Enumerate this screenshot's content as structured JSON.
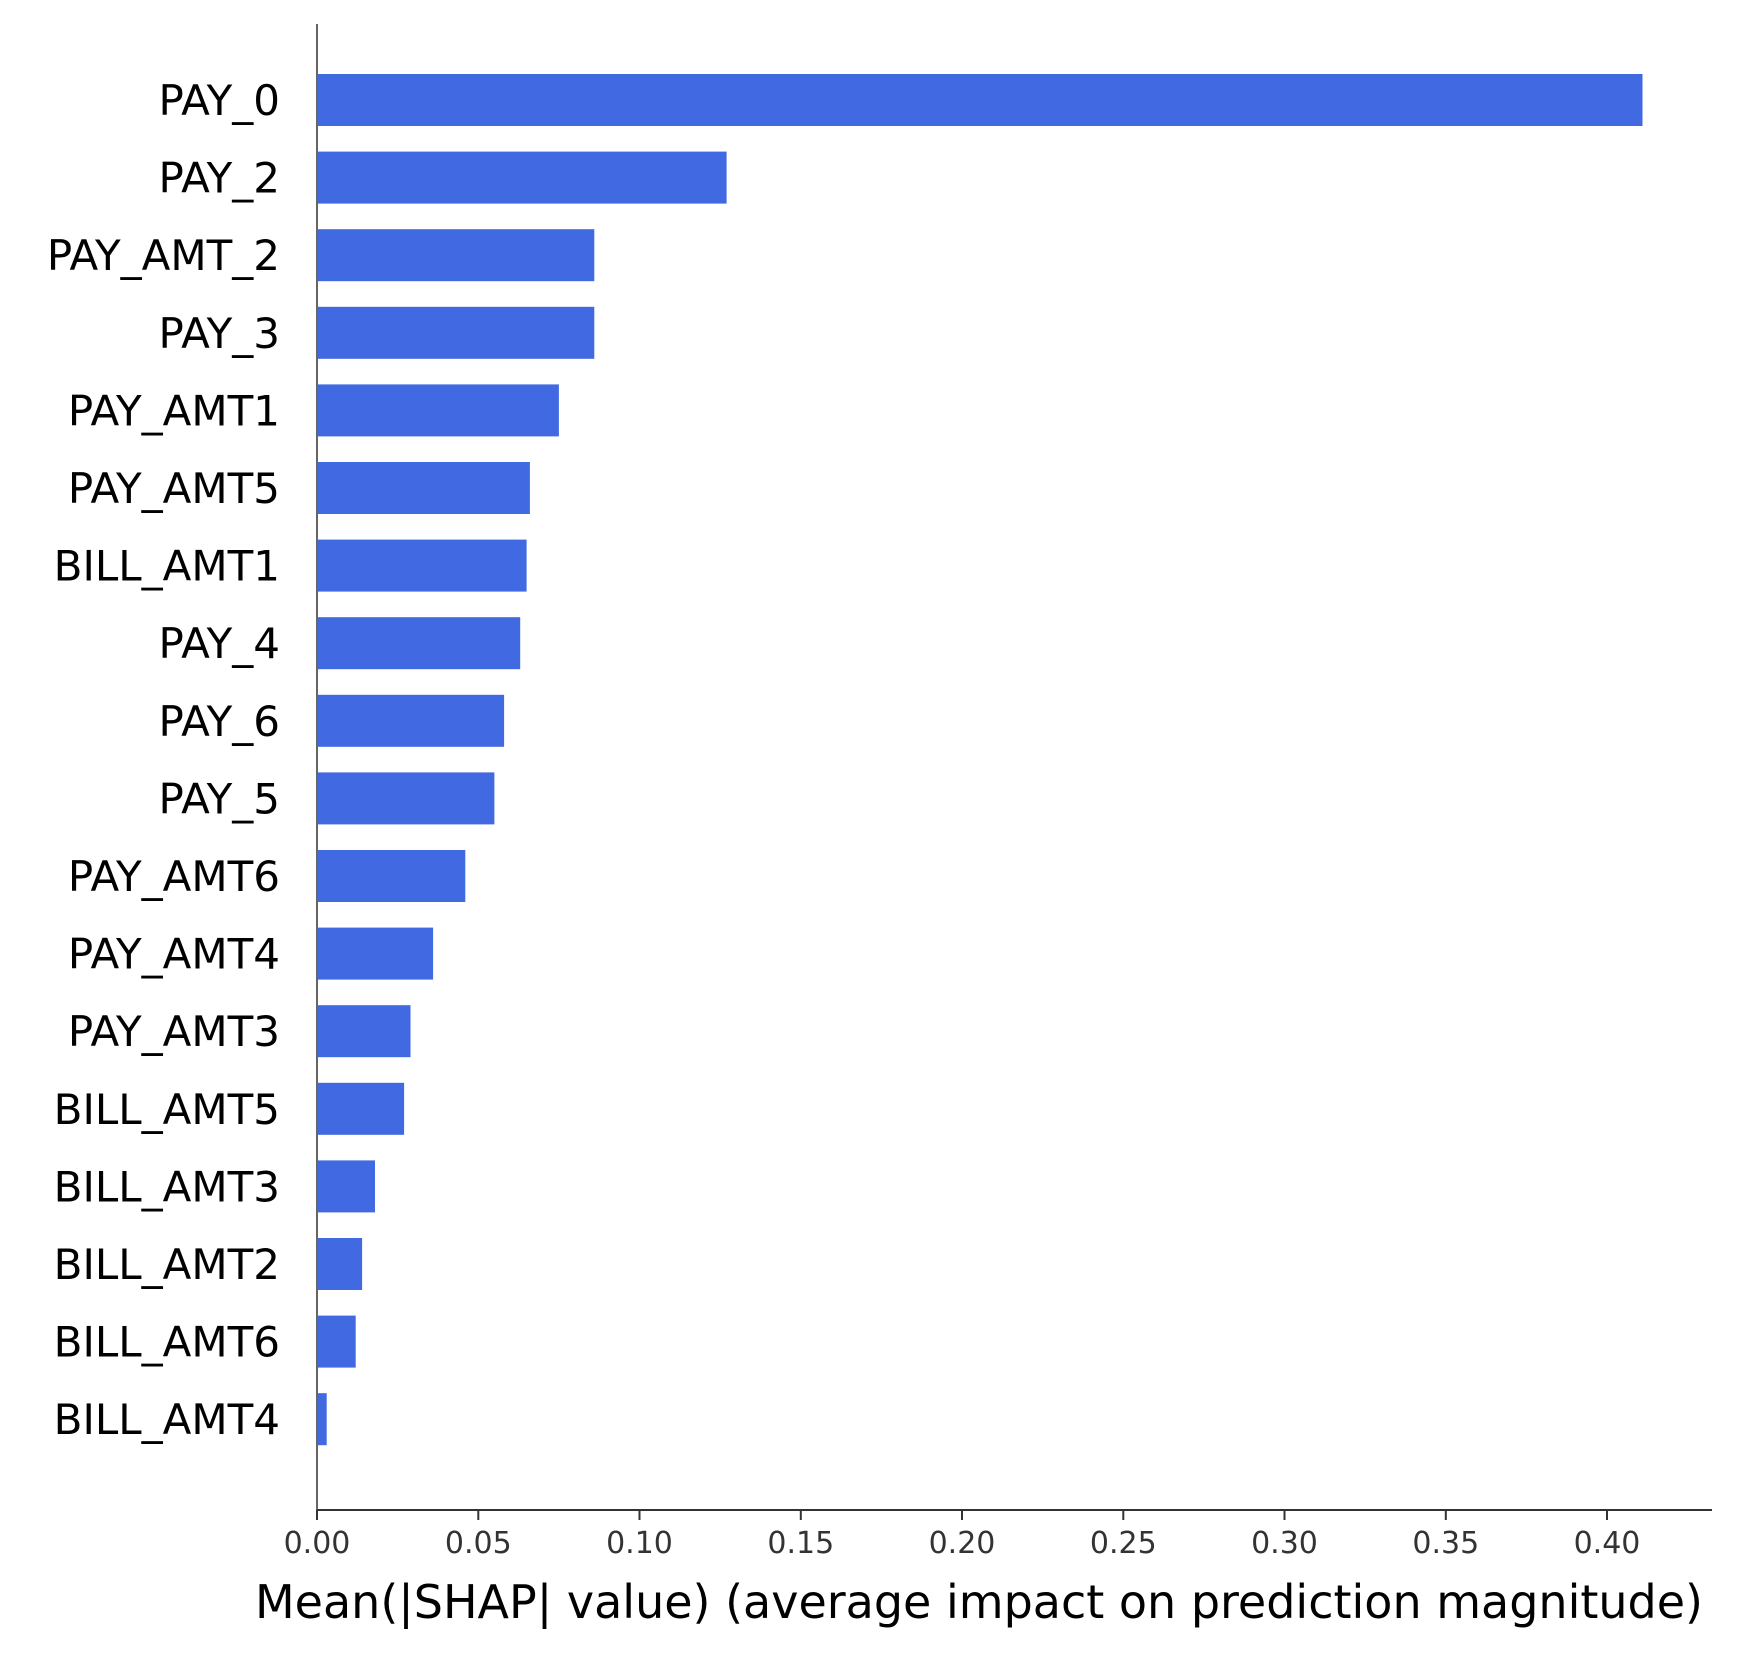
{
  "chart_data": {
    "type": "bar",
    "orientation": "horizontal",
    "categories": [
      "PAY_0",
      "PAY_2",
      "PAY_AMT_2",
      "PAY_3",
      "PAY_AMT1",
      "PAY_AMT5",
      "BILL_AMT1",
      "PAY_4",
      "PAY_6",
      "PAY_5",
      "PAY_AMT6",
      "PAY_AMT4",
      "PAY_AMT3",
      "BILL_AMT5",
      "BILL_AMT3",
      "BILL_AMT2",
      "BILL_AMT6",
      "BILL_AMT4"
    ],
    "values": [
      0.411,
      0.127,
      0.086,
      0.086,
      0.075,
      0.066,
      0.065,
      0.063,
      0.058,
      0.055,
      0.046,
      0.036,
      0.029,
      0.027,
      0.018,
      0.014,
      0.012,
      0.003
    ],
    "title": "",
    "xlabel": "Mean(|SHAP| value) (average impact on prediction magnitude)",
    "ylabel": "",
    "xlim": [
      0,
      0.43
    ],
    "xticks": [
      "0.00",
      "0.05",
      "0.10",
      "0.15",
      "0.20",
      "0.25",
      "0.30",
      "0.35",
      "0.40"
    ],
    "grid": false,
    "legend": "none",
    "bar_color": "#4169E1"
  }
}
